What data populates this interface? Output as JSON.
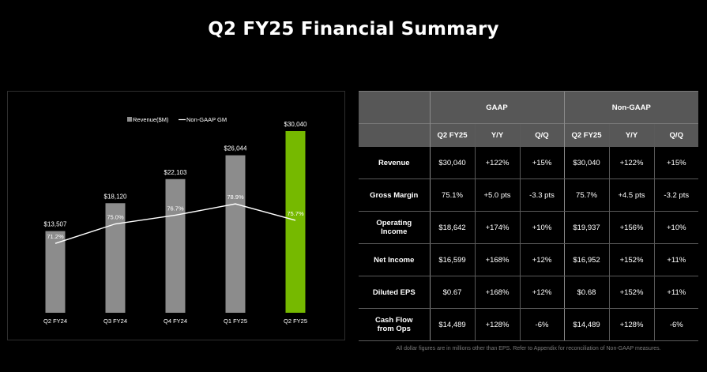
{
  "title": "Q2 FY25 Financial Summary",
  "colors": {
    "background": "#000000",
    "bar_default": "#8c8c8c",
    "bar_highlight": "#76b900",
    "line": "#ffffff",
    "table_header": "#575757"
  },
  "chart_data": {
    "type": "bar",
    "categories": [
      "Q2 FY24",
      "Q3 FY24",
      "Q4 FY24",
      "Q1 FY25",
      "Q2 FY25"
    ],
    "series": [
      {
        "name": "Revenue($M)",
        "type": "bar",
        "values": [
          13507,
          18120,
          22103,
          26044,
          30040
        ],
        "labels": [
          "$13,507",
          "$18,120",
          "$22,103",
          "$26,044",
          "$30,040"
        ],
        "highlight_index": 4
      },
      {
        "name": "Non-GAAP GM",
        "type": "line",
        "values": [
          71.2,
          75.0,
          76.7,
          78.9,
          75.7
        ],
        "labels": [
          "71.2%",
          "75.0%",
          "76.7%",
          "78.9%",
          "75.7%"
        ]
      }
    ],
    "legend": {
      "placement": "top-left"
    },
    "grid": false,
    "ylim": [
      0,
      32000
    ]
  },
  "table": {
    "groups": [
      "GAAP",
      "Non-GAAP"
    ],
    "columns": [
      "Q2 FY25",
      "Y/Y",
      "Q/Q",
      "Q2 FY25",
      "Y/Y",
      "Q/Q"
    ],
    "rows": [
      {
        "label": [
          "Revenue"
        ],
        "cells": [
          "$30,040",
          "+122%",
          "+15%",
          "$30,040",
          "+122%",
          "+15%"
        ]
      },
      {
        "label": [
          "Gross Margin"
        ],
        "cells": [
          "75.1%",
          "+5.0 pts",
          "-3.3 pts",
          "75.7%",
          "+4.5 pts",
          "-3.2 pts"
        ]
      },
      {
        "label": [
          "Operating",
          "Income"
        ],
        "cells": [
          "$18,642",
          "+174%",
          "+10%",
          "$19,937",
          "+156%",
          "+10%"
        ]
      },
      {
        "label": [
          "Net Income"
        ],
        "cells": [
          "$16,599",
          "+168%",
          "+12%",
          "$16,952",
          "+152%",
          "+11%"
        ]
      },
      {
        "label": [
          "Diluted EPS"
        ],
        "cells": [
          "$0.67",
          "+168%",
          "+12%",
          "$0.68",
          "+152%",
          "+11%"
        ]
      },
      {
        "label": [
          "Cash Flow",
          "from Ops"
        ],
        "cells": [
          "$14,489",
          "+128%",
          "-6%",
          "$14,489",
          "+128%",
          "-6%"
        ]
      }
    ]
  },
  "footnote": "All dollar figures are in millions other than EPS. Refer to Appendix for reconciliation of Non-GAAP measures."
}
